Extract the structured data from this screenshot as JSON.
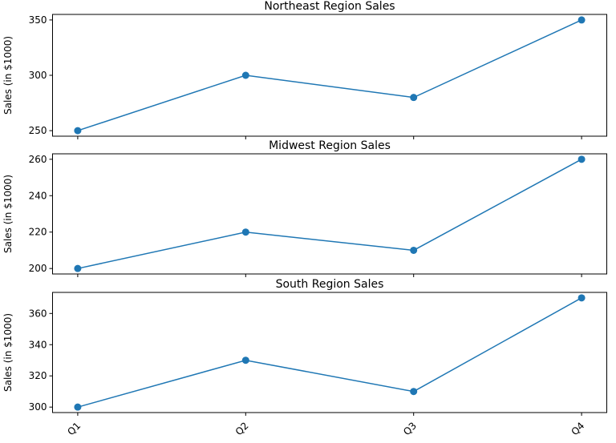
{
  "chart_data": [
    {
      "type": "line",
      "title": "Northeast Region Sales",
      "ylabel": "Sales (in $1000)",
      "values": [
        250,
        300,
        280,
        350
      ],
      "color": "#1f77b4",
      "ylim": [
        245,
        355
      ],
      "yticks": [
        250,
        300,
        350
      ]
    },
    {
      "type": "line",
      "title": "Midwest Region Sales",
      "ylabel": "Sales (in $1000)",
      "values": [
        200,
        220,
        210,
        260
      ],
      "color": "#1f77b4",
      "ylim": [
        197,
        263
      ],
      "yticks": [
        200,
        220,
        240,
        260
      ]
    },
    {
      "type": "line",
      "title": "South Region Sales",
      "ylabel": "Sales (in $1000)",
      "categories": [
        "Q1",
        "Q2",
        "Q3",
        "Q4"
      ],
      "values": [
        300,
        330,
        310,
        370
      ],
      "color": "#1f77b4",
      "ylim": [
        296.5,
        373.5
      ],
      "yticks": [
        300,
        320,
        340,
        360
      ]
    }
  ]
}
